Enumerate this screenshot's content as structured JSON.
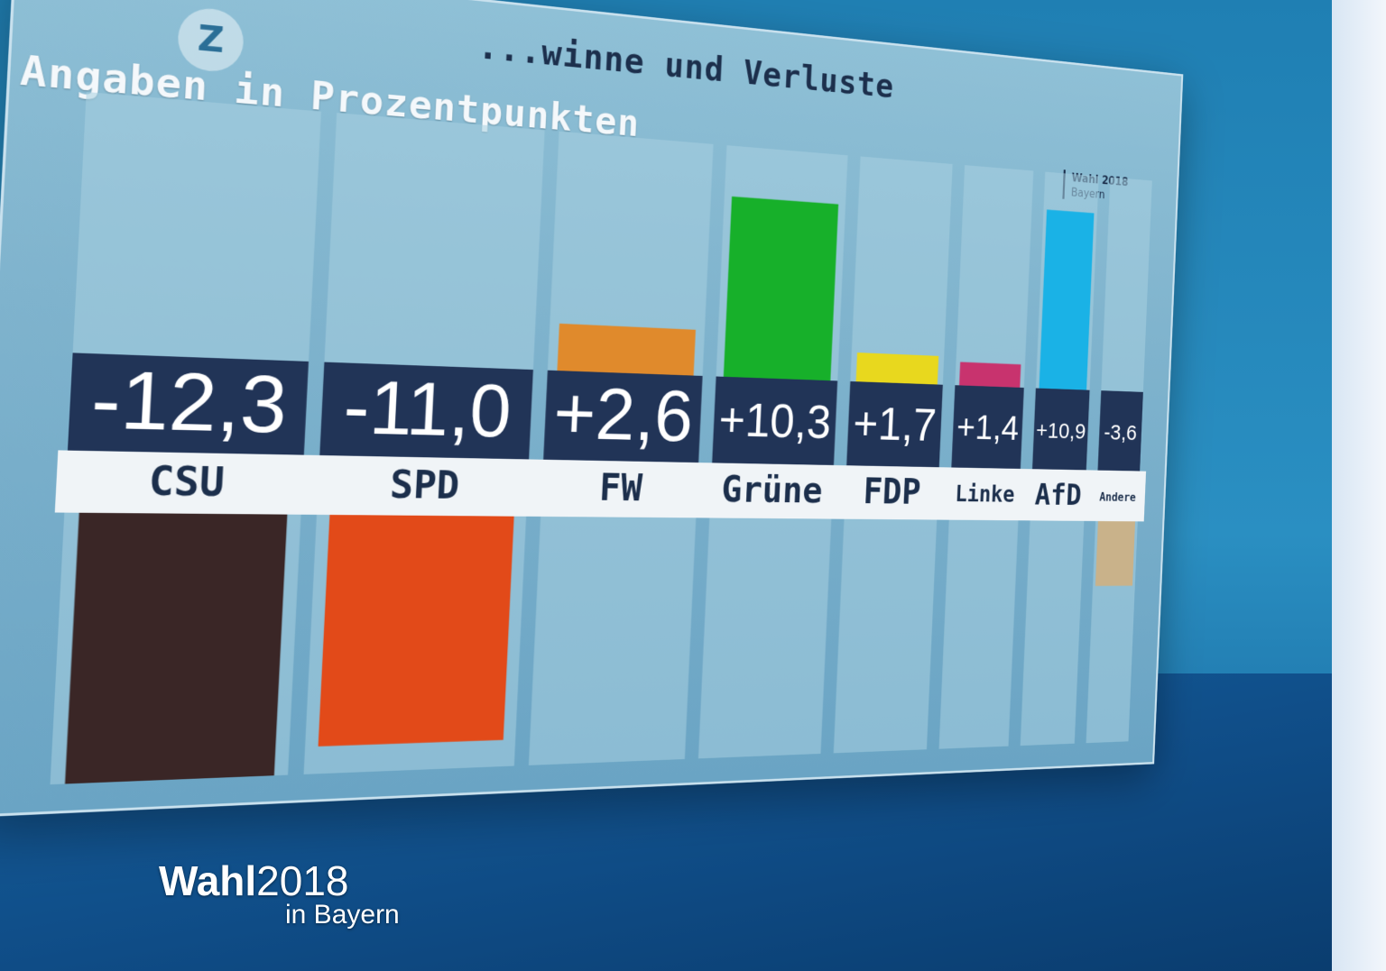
{
  "header": {
    "title_partial": "...winne und Verluste",
    "subtitle": "Angaben in Prozentpunkten"
  },
  "corner_logo": {
    "line1": "Wahl 2018",
    "line2": "Bayern"
  },
  "sender_logo": {
    "glyph": "Z",
    "icon": "zdf-logo-icon"
  },
  "overlay_logo": {
    "wahl": "Wahl",
    "year": "2018",
    "sub": "in Bayern"
  },
  "chart_data": {
    "type": "bar",
    "title": "...winne und Verluste",
    "subtitle": "Angaben in Prozentpunkten",
    "categories": [
      "CSU",
      "SPD",
      "FW",
      "Grüne",
      "FDP",
      "Linke",
      "AfD",
      "Andere"
    ],
    "values": [
      -12.3,
      -11.0,
      2.6,
      10.3,
      1.7,
      1.4,
      10.9,
      -3.6
    ],
    "value_labels": [
      "-12,3",
      "-11,0",
      "+2,6",
      "+10,3",
      "+1,7",
      "+1,4",
      "+10,9",
      "-3,6"
    ],
    "colors": [
      "#3a2626",
      "#e24a19",
      "#e08a2c",
      "#17b02a",
      "#e8d81e",
      "#c8336e",
      "#1ab2e6",
      "#c9b28a"
    ],
    "ylim": [
      -12.3,
      10.9
    ],
    "grid": false,
    "legend": "none"
  }
}
